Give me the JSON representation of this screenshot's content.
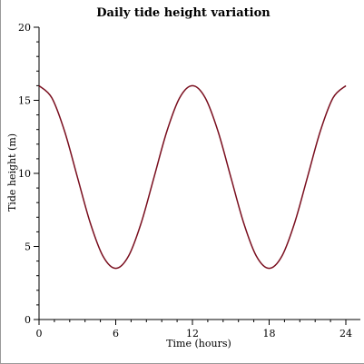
{
  "chart_data": {
    "type": "line",
    "title": "Daily tide height variation",
    "xlabel": "Time (hours)",
    "ylabel": "Tide height (m)",
    "xlim": [
      0,
      24
    ],
    "ylim": [
      0,
      20
    ],
    "xticks": [
      0,
      6,
      12,
      18,
      24
    ],
    "yticks": [
      0,
      5,
      10,
      15,
      20
    ],
    "grid": false,
    "series": [
      {
        "color": "#7a0f1f",
        "x": [
          0,
          1,
          2,
          3,
          4,
          5,
          6,
          7,
          8,
          9,
          10,
          11,
          12,
          13,
          14,
          15,
          16,
          17,
          18,
          19,
          20,
          21,
          22,
          23,
          24
        ],
        "y": [
          16.0,
          15.17,
          12.88,
          9.75,
          6.63,
          4.34,
          3.5,
          4.34,
          6.63,
          9.75,
          12.88,
          15.17,
          16.0,
          15.17,
          12.88,
          9.75,
          6.63,
          4.34,
          3.5,
          4.34,
          6.63,
          9.75,
          12.88,
          15.17,
          16.0
        ]
      }
    ]
  }
}
